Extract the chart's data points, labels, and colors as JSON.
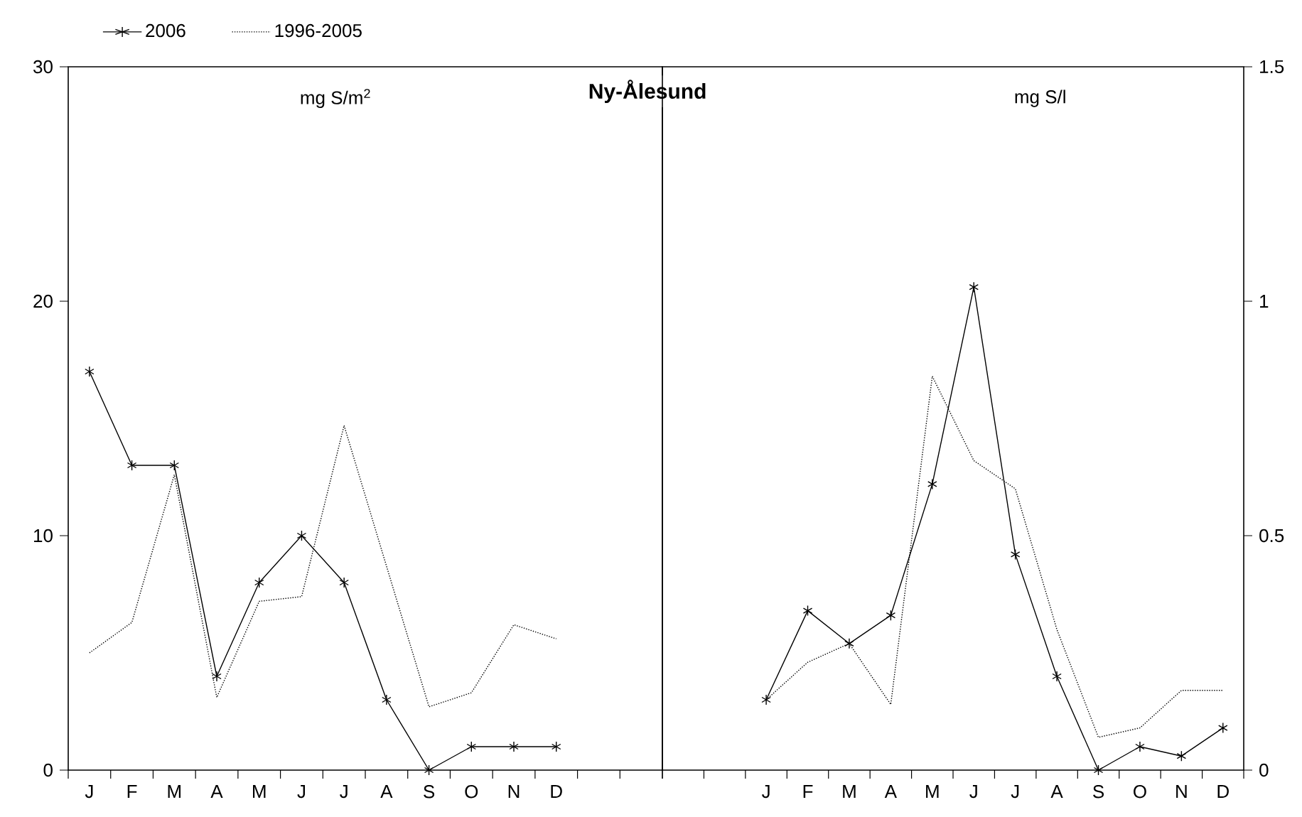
{
  "chart_data": [
    {
      "type": "line",
      "title": "Ny-Ålesund",
      "ylabel": "mg S/m$^{2}$",
      "categories": [
        "J",
        "F",
        "M",
        "A",
        "M",
        "J",
        "J",
        "A",
        "S",
        "O",
        "N",
        "D",
        null,
        null
      ],
      "ylim": [
        0,
        30
      ],
      "yticks": [
        0,
        10,
        20,
        30
      ],
      "legend": "top",
      "series": [
        {
          "name": "2006",
          "color": "#000000",
          "line_style": "solid",
          "marker": "cross",
          "values": [
            17,
            13,
            13,
            4,
            8,
            10,
            8,
            3,
            0,
            1,
            1,
            1,
            null,
            null
          ]
        },
        {
          "name": "1996-2005",
          "color": "#000000",
          "line_style": "dotted",
          "marker": "none",
          "values": [
            5,
            6.3,
            12.6,
            3.1,
            7.2,
            7.4,
            14.7,
            8.7,
            2.7,
            3.3,
            6.2,
            5.6,
            null,
            null
          ]
        }
      ]
    },
    {
      "type": "line",
      "ylabel": "mg S/l",
      "categories": [
        null,
        null,
        "J",
        "F",
        "M",
        "A",
        "M",
        "J",
        "J",
        "A",
        "S",
        "O",
        "N",
        "D"
      ],
      "ylim": [
        0,
        1.5
      ],
      "yticks": [
        0,
        0.5,
        1,
        1.5
      ],
      "series": [
        {
          "color": "#000000",
          "line_style": "solid",
          "marker": "cross",
          "values": [
            null,
            null,
            0.15,
            0.34,
            0.27,
            0.33,
            0.61,
            1.03,
            0.46,
            0.2,
            0,
            0.05,
            0.03,
            0.09
          ]
        },
        {
          "color": "#000000",
          "line_style": "dotted",
          "marker": "none",
          "values": [
            null,
            null,
            0.15,
            0.23,
            0.27,
            0.14,
            0.84,
            0.66,
            0.6,
            0.3,
            0.07,
            0.09,
            0.17,
            0.17
          ]
        }
      ]
    }
  ]
}
